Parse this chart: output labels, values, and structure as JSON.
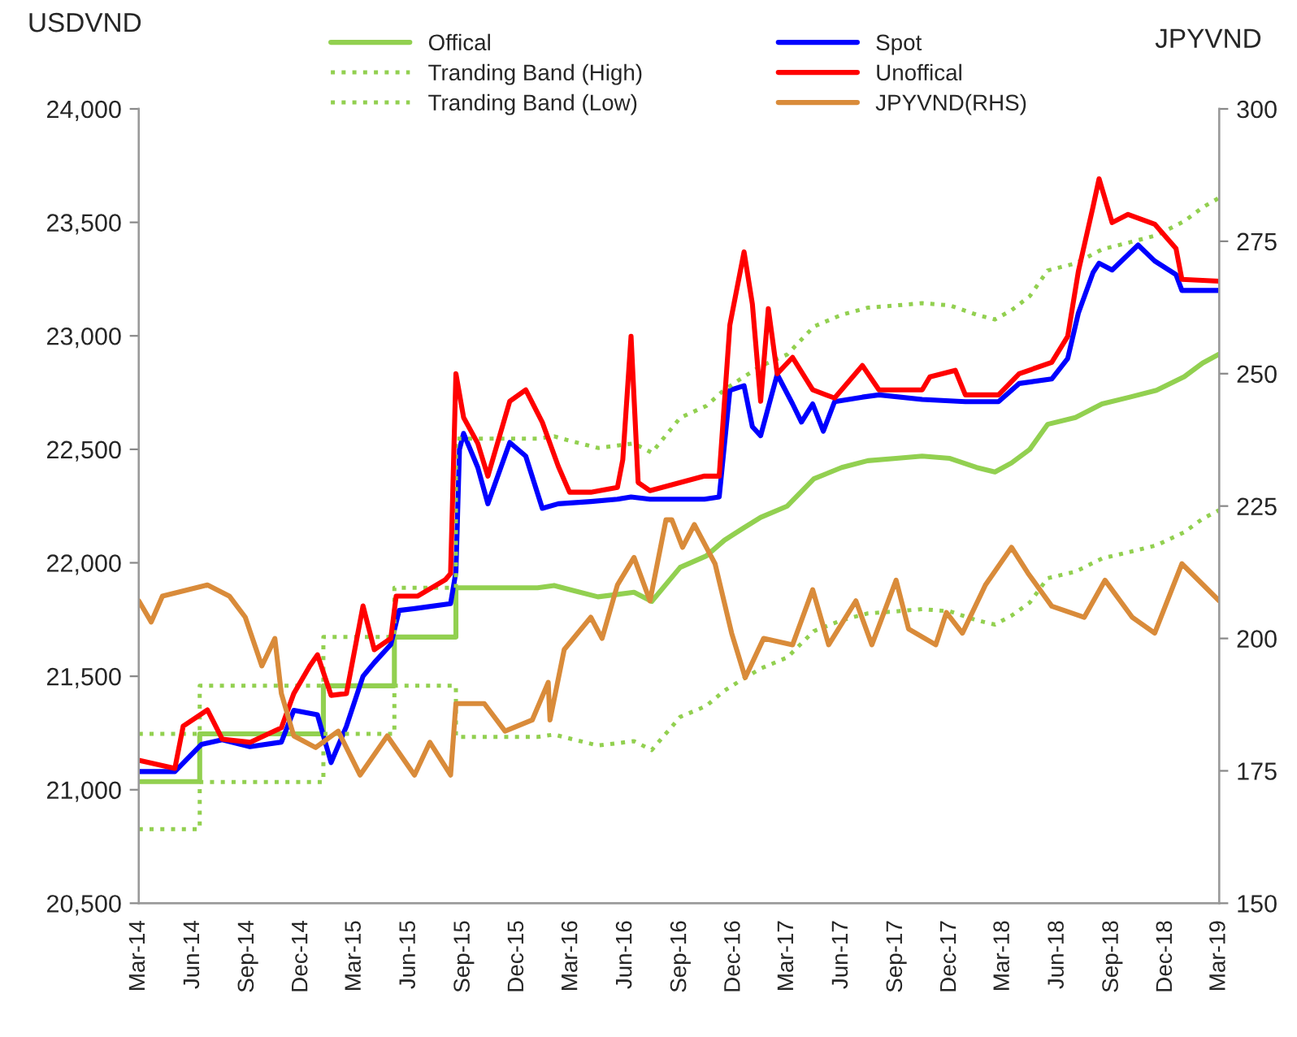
{
  "chart_data": {
    "type": "line",
    "ylabel": "USDVND",
    "y2label": "JPYVND",
    "legend": "top",
    "xlim": [
      "2014-03-01",
      "2019-03-01"
    ],
    "xticks": [
      {
        "value": "2014-03",
        "label": "Mar-14"
      },
      {
        "value": "2014-06",
        "label": "Jun-14"
      },
      {
        "value": "2014-09",
        "label": "Sep-14"
      },
      {
        "value": "2014-12",
        "label": "Dec-14"
      },
      {
        "value": "2015-03",
        "label": "Mar-15"
      },
      {
        "value": "2015-06",
        "label": "Jun-15"
      },
      {
        "value": "2015-09",
        "label": "Sep-15"
      },
      {
        "value": "2015-12",
        "label": "Dec-15"
      },
      {
        "value": "2016-03",
        "label": "Mar-16"
      },
      {
        "value": "2016-06",
        "label": "Jun-16"
      },
      {
        "value": "2016-09",
        "label": "Sep-16"
      },
      {
        "value": "2016-12",
        "label": "Dec-16"
      },
      {
        "value": "2017-03",
        "label": "Mar-17"
      },
      {
        "value": "2017-06",
        "label": "Jun-17"
      },
      {
        "value": "2017-09",
        "label": "Sep-17"
      },
      {
        "value": "2017-12",
        "label": "Dec-17"
      },
      {
        "value": "2018-03",
        "label": "Mar-18"
      },
      {
        "value": "2018-06",
        "label": "Jun-18"
      },
      {
        "value": "2018-09",
        "label": "Sep-18"
      },
      {
        "value": "2018-12",
        "label": "Dec-18"
      },
      {
        "value": "2019-03",
        "label": "Mar-19"
      }
    ],
    "ylim": [
      20500,
      24000
    ],
    "yticks": [
      {
        "value": 20500,
        "label": "20,500"
      },
      {
        "value": 21000,
        "label": "21,000"
      },
      {
        "value": 21500,
        "label": "21,500"
      },
      {
        "value": 22000,
        "label": "22,000"
      },
      {
        "value": 22500,
        "label": "22,500"
      },
      {
        "value": 23000,
        "label": "23,000"
      },
      {
        "value": 23500,
        "label": "23,500"
      },
      {
        "value": 24000,
        "label": "24,000"
      }
    ],
    "y2lim": [
      150,
      300
    ],
    "y2ticks": [
      150,
      175,
      200,
      225,
      250,
      275,
      300
    ],
    "series": [
      {
        "name": "Offical",
        "color": "#92d050",
        "line_style": "solid",
        "x": [
          "2014-03-01",
          "2014-06-12",
          "2014-06-12",
          "2015-01-07",
          "2015-01-07",
          "2015-05-07",
          "2015-05-07",
          "2015-08-19",
          "2015-08-19",
          "2016-01-04",
          "2016-02-01",
          "2016-03-01",
          "2016-04-15",
          "2016-06-15",
          "2016-07-15",
          "2016-09-01",
          "2016-10-15",
          "2016-11-15",
          "2016-12-15",
          "2017-01-15",
          "2017-03-01",
          "2017-04-15",
          "2017-06-01",
          "2017-07-15",
          "2017-09-01",
          "2017-10-15",
          "2017-12-01",
          "2018-01-15",
          "2018-02-15",
          "2018-03-15",
          "2018-04-15",
          "2018-05-15",
          "2018-07-01",
          "2018-08-15",
          "2018-10-01",
          "2018-11-15",
          "2019-01-01",
          "2019-02-01",
          "2019-03-01"
        ],
        "values": [
          21036,
          21036,
          21246,
          21246,
          21458,
          21458,
          21673,
          21673,
          21890,
          21890,
          21900,
          21880,
          21850,
          21870,
          21830,
          21980,
          22030,
          22100,
          22150,
          22200,
          22250,
          22370,
          22420,
          22450,
          22460,
          22470,
          22460,
          22420,
          22400,
          22440,
          22500,
          22610,
          22640,
          22700,
          22730,
          22760,
          22820,
          22880,
          22920
        ]
      },
      {
        "name": "Spot",
        "color": "#0000ff",
        "line_style": "solid",
        "x": [
          "2014-03-01",
          "2014-05-01",
          "2014-06-15",
          "2014-07-20",
          "2014-09-05",
          "2014-10-28",
          "2014-11-18",
          "2014-12-28",
          "2015-01-20",
          "2015-02-15",
          "2015-03-15",
          "2015-04-03",
          "2015-05-01",
          "2015-05-15",
          "2015-06-15",
          "2015-08-10",
          "2015-08-19",
          "2015-08-25",
          "2015-09-01",
          "2015-09-25",
          "2015-10-12",
          "2015-11-18",
          "2015-12-15",
          "2016-01-12",
          "2016-02-08",
          "2016-04-03",
          "2016-05-18",
          "2016-06-10",
          "2016-07-12",
          "2016-10-12",
          "2016-11-06",
          "2016-11-24",
          "2016-12-18",
          "2017-01-01",
          "2017-01-15",
          "2017-02-12",
          "2017-03-10",
          "2017-03-25",
          "2017-04-13",
          "2017-05-01",
          "2017-05-20",
          "2017-07-06",
          "2017-08-03",
          "2017-10-15",
          "2017-12-27",
          "2018-02-21",
          "2018-03-28",
          "2018-05-22",
          "2018-06-18",
          "2018-07-06",
          "2018-07-31",
          "2018-08-10",
          "2018-09-01",
          "2018-10-15",
          "2018-11-12",
          "2018-12-18",
          "2018-12-28",
          "2019-03-01"
        ],
        "values": [
          21080,
          21080,
          21200,
          21220,
          21190,
          21210,
          21350,
          21330,
          21120,
          21280,
          21500,
          21560,
          21640,
          21790,
          21800,
          21820,
          21960,
          22500,
          22570,
          22420,
          22260,
          22530,
          22470,
          22240,
          22260,
          22270,
          22280,
          22290,
          22280,
          22280,
          22290,
          22760,
          22780,
          22600,
          22560,
          22830,
          22700,
          22620,
          22700,
          22580,
          22710,
          22730,
          22740,
          22720,
          22710,
          22710,
          22790,
          22810,
          22900,
          23100,
          23280,
          23320,
          23290,
          23400,
          23330,
          23270,
          23200,
          23200
        ]
      },
      {
        "name": "Tranding Band (High)",
        "color": "#92d050",
        "line_style": "dotted",
        "x": [
          "2014-03-01",
          "2014-06-12",
          "2014-06-12",
          "2015-01-07",
          "2015-01-07",
          "2015-05-07",
          "2015-05-07",
          "2015-08-19",
          "2015-08-19",
          "2016-01-04",
          "2016-02-01",
          "2016-03-01",
          "2016-04-15",
          "2016-06-15",
          "2016-07-15",
          "2016-09-01",
          "2016-10-15",
          "2016-11-15",
          "2016-12-15",
          "2017-01-15",
          "2017-03-01",
          "2017-04-15",
          "2017-06-01",
          "2017-07-15",
          "2017-09-01",
          "2017-10-15",
          "2017-12-01",
          "2018-01-15",
          "2018-02-15",
          "2018-03-15",
          "2018-04-15",
          "2018-05-15",
          "2018-07-01",
          "2018-08-15",
          "2018-10-01",
          "2018-11-15",
          "2019-01-01",
          "2019-02-01",
          "2019-03-01"
        ],
        "values": [
          21246,
          21246,
          21458,
          21458,
          21673,
          21673,
          21890,
          21890,
          22547,
          22547,
          22557,
          22536,
          22506,
          22526,
          22485,
          22639,
          22691,
          22763,
          22815,
          22866,
          22918,
          23041,
          23093,
          23124,
          23134,
          23144,
          23134,
          23093,
          23072,
          23113,
          23175,
          23288,
          23319,
          23381,
          23412,
          23443,
          23505,
          23566,
          23608
        ]
      },
      {
        "name": "Unoffical",
        "color": "#ff0000",
        "line_style": "solid",
        "x": [
          "2014-03-01",
          "2014-05-01",
          "2014-05-15",
          "2014-06-25",
          "2014-07-20",
          "2014-09-05",
          "2014-10-28",
          "2014-11-18",
          "2014-12-15",
          "2014-12-28",
          "2015-01-20",
          "2015-02-15",
          "2015-03-15",
          "2015-04-03",
          "2015-05-01",
          "2015-05-10",
          "2015-06-15",
          "2015-08-01",
          "2015-08-10",
          "2015-08-19",
          "2015-09-01",
          "2015-09-25",
          "2015-10-12",
          "2015-11-18",
          "2015-12-15",
          "2016-01-12",
          "2016-02-08",
          "2016-02-27",
          "2016-04-03",
          "2016-05-18",
          "2016-05-27",
          "2016-06-10",
          "2016-06-22",
          "2016-07-12",
          "2016-10-12",
          "2016-11-06",
          "2016-11-24",
          "2016-12-18",
          "2017-01-01",
          "2017-01-15",
          "2017-01-28",
          "2017-02-12",
          "2017-03-10",
          "2017-04-13",
          "2017-05-20",
          "2017-07-06",
          "2017-08-03",
          "2017-10-15",
          "2017-10-28",
          "2017-12-10",
          "2017-12-27",
          "2018-02-21",
          "2018-03-28",
          "2018-05-22",
          "2018-06-18",
          "2018-07-06",
          "2018-07-31",
          "2018-08-10",
          "2018-09-01",
          "2018-09-28",
          "2018-11-12",
          "2018-12-18",
          "2018-12-28",
          "2019-03-01"
        ],
        "values": [
          21130,
          21094,
          21280,
          21352,
          21223,
          21209,
          21273,
          21424,
          21545,
          21595,
          21416,
          21424,
          21810,
          21617,
          21667,
          21853,
          21853,
          21925,
          21953,
          22833,
          22640,
          22526,
          22382,
          22712,
          22762,
          22619,
          22425,
          22311,
          22311,
          22332,
          22454,
          22998,
          22354,
          22318,
          22382,
          22382,
          23048,
          23370,
          23141,
          22712,
          23120,
          22833,
          22905,
          22762,
          22726,
          22869,
          22762,
          22762,
          22819,
          22848,
          22740,
          22740,
          22833,
          22883,
          22998,
          23284,
          23571,
          23692,
          23499,
          23535,
          23492,
          23385,
          23249,
          23241
        ]
      },
      {
        "name": "Tranding Band (Low)",
        "color": "#92d050",
        "line_style": "dotted",
        "x": [
          "2014-03-01",
          "2014-06-12",
          "2014-06-12",
          "2015-01-07",
          "2015-01-07",
          "2015-05-07",
          "2015-05-07",
          "2015-08-19",
          "2015-08-19",
          "2016-01-04",
          "2016-02-01",
          "2016-03-01",
          "2016-04-15",
          "2016-06-15",
          "2016-07-15",
          "2016-09-01",
          "2016-10-15",
          "2016-11-15",
          "2016-12-15",
          "2017-01-15",
          "2017-03-01",
          "2017-04-15",
          "2017-06-01",
          "2017-07-15",
          "2017-09-01",
          "2017-10-15",
          "2017-12-01",
          "2018-01-15",
          "2018-02-15",
          "2018-03-15",
          "2018-04-15",
          "2018-05-15",
          "2018-07-01",
          "2018-08-15",
          "2018-10-01",
          "2018-11-15",
          "2019-01-01",
          "2019-02-01",
          "2019-03-01"
        ],
        "values": [
          20826,
          20826,
          21034,
          21034,
          21246,
          21246,
          21458,
          21458,
          21233,
          21233,
          21243,
          21224,
          21195,
          21214,
          21175,
          21321,
          21369,
          21437,
          21486,
          21534,
          21583,
          21699,
          21747,
          21777,
          21786,
          21796,
          21786,
          21747,
          21728,
          21767,
          21825,
          21932,
          21961,
          22019,
          22048,
          22077,
          22135,
          22194,
          22232
        ]
      },
      {
        "name": "JPYVND(RHS)",
        "color": "#d98b3a",
        "line_style": "solid",
        "axis": "y2",
        "x": [
          "2014-03-01",
          "2014-03-22",
          "2014-04-10",
          "2014-06-25",
          "2014-08-01",
          "2014-08-28",
          "2014-09-25",
          "2014-10-17",
          "2014-10-28",
          "2014-11-18",
          "2014-12-25",
          "2015-02-01",
          "2015-03-10",
          "2015-04-25",
          "2015-06-10",
          "2015-07-06",
          "2015-08-10",
          "2015-08-19",
          "2015-10-06",
          "2015-11-10",
          "2015-12-26",
          "2016-01-22",
          "2016-01-25",
          "2016-02-18",
          "2016-04-03",
          "2016-04-22",
          "2016-05-18",
          "2016-06-15",
          "2016-07-12",
          "2016-08-08",
          "2016-08-18",
          "2016-09-05",
          "2016-09-25",
          "2016-10-30",
          "2016-11-27",
          "2016-12-20",
          "2017-01-20",
          "2017-03-10",
          "2017-04-13",
          "2017-05-10",
          "2017-06-25",
          "2017-07-22",
          "2017-09-01",
          "2017-09-22",
          "2017-11-07",
          "2017-11-25",
          "2017-12-22",
          "2018-01-30",
          "2018-03-15",
          "2018-04-12",
          "2018-05-22",
          "2018-07-16",
          "2018-08-20",
          "2018-10-05",
          "2018-11-12",
          "2018-12-28",
          "2019-02-02",
          "2019-03-01"
        ],
        "values": [
          207.1,
          203.1,
          208.0,
          210.1,
          208.0,
          204.0,
          194.8,
          200.0,
          189.6,
          181.6,
          179.4,
          182.5,
          174.2,
          181.6,
          174.2,
          180.4,
          174.2,
          187.7,
          187.7,
          182.5,
          184.6,
          191.7,
          184.6,
          197.9,
          204.0,
          200.0,
          210.1,
          215.3,
          207.1,
          222.4,
          222.4,
          217.2,
          221.5,
          214.1,
          201.0,
          192.6,
          200.0,
          198.8,
          209.2,
          198.8,
          207.1,
          198.8,
          211.0,
          201.8,
          198.8,
          204.9,
          201.0,
          210.1,
          217.2,
          212.3,
          206.1,
          204.0,
          211.0,
          204.0,
          201.0,
          214.1,
          210.1,
          207.1
        ]
      }
    ]
  }
}
